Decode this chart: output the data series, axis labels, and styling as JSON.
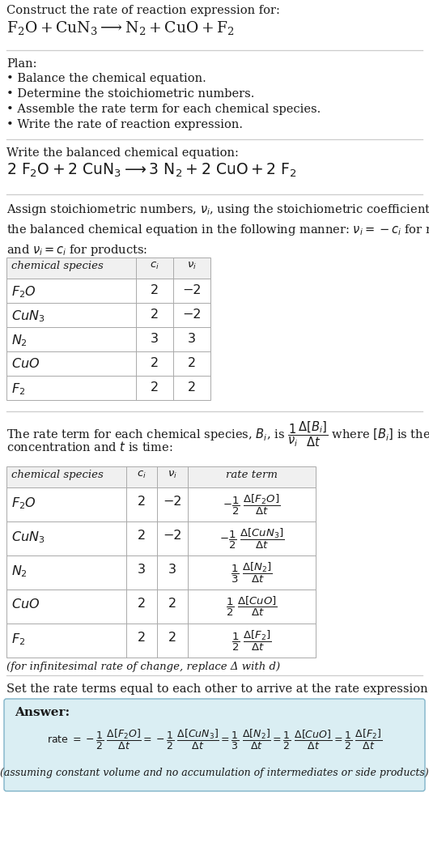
{
  "bg_color": "#ffffff",
  "text_color": "#1a1a1a",
  "plan_items": [
    "• Balance the chemical equation.",
    "• Determine the stoichiometric numbers.",
    "• Assemble the rate term for each chemical species.",
    "• Write the rate of reaction expression."
  ],
  "infinitesimal_note": "(for infinitesimal rate of change, replace Δ with d)",
  "set_equal_text": "Set the rate terms equal to each other to arrive at the rate expression:",
  "answer_box_bg": "#daeef3",
  "answer_box_border": "#7fb3c8",
  "answer_label": "Answer:",
  "assuming_note": "(assuming constant volume and no accumulation of intermediates or side products)",
  "row_labels_math": [
    "$F_2O$",
    "$CuN_3$",
    "$N_2$",
    "$CuO$",
    "$F_2$"
  ],
  "ci_vals": [
    "2",
    "2",
    "3",
    "2",
    "2"
  ],
  "nu_vals": [
    "−2",
    "−2",
    "3",
    "2",
    "2"
  ],
  "rate_terms": [
    "$-\\dfrac{1}{2}\\ \\dfrac{\\Delta[F_2O]}{\\Delta t}$",
    "$-\\dfrac{1}{2}\\ \\dfrac{\\Delta[CuN_3]}{\\Delta t}$",
    "$\\dfrac{1}{3}\\ \\dfrac{\\Delta[N_2]}{\\Delta t}$",
    "$\\dfrac{1}{2}\\ \\dfrac{\\Delta[CuO]}{\\Delta t}$",
    "$\\dfrac{1}{2}\\ \\dfrac{\\Delta[F_2]}{\\Delta t}$"
  ]
}
